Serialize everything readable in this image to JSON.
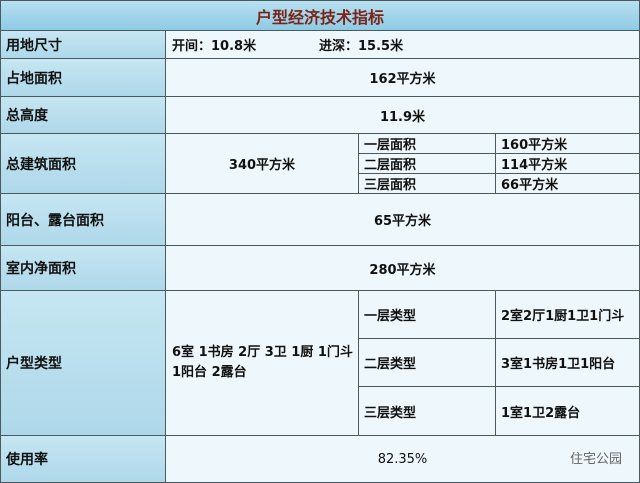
{
  "table": {
    "title": "户型经济技术指标",
    "site_size": {
      "label": "用地尺寸",
      "width": "开间：10.8米",
      "depth": "进深：15.5米"
    },
    "footprint": {
      "label": "占地面积",
      "value": "162平方米"
    },
    "height": {
      "label": "总高度",
      "value": "11.9米"
    },
    "floor_area": {
      "label": "总建筑面积",
      "value": "340平方米",
      "floors": [
        {
          "label": "一层面积",
          "value": "160平方米"
        },
        {
          "label": "二层面积",
          "value": "114平方米"
        },
        {
          "label": "三层面积",
          "value": "66平方米"
        }
      ]
    },
    "balcony": {
      "label": "阳台、露台面积",
      "value": "65平方米"
    },
    "net_area": {
      "label": "室内净面积",
      "value": "280平方米"
    },
    "layout": {
      "label": "户型类型",
      "value": "6室 1书房 2厅 3卫 1厨 1门斗 1阳台 2露台",
      "floors": [
        {
          "label": "一层类型",
          "value": "2室2厅1厨1卫1门斗"
        },
        {
          "label": "二层类型",
          "value": "3室1书房1卫1阳台"
        },
        {
          "label": "三层类型",
          "value": "1室1卫2露台"
        }
      ]
    },
    "usage_rate": {
      "label": "使用率",
      "value": "82.35%"
    }
  },
  "watermark": "住宅公园"
}
